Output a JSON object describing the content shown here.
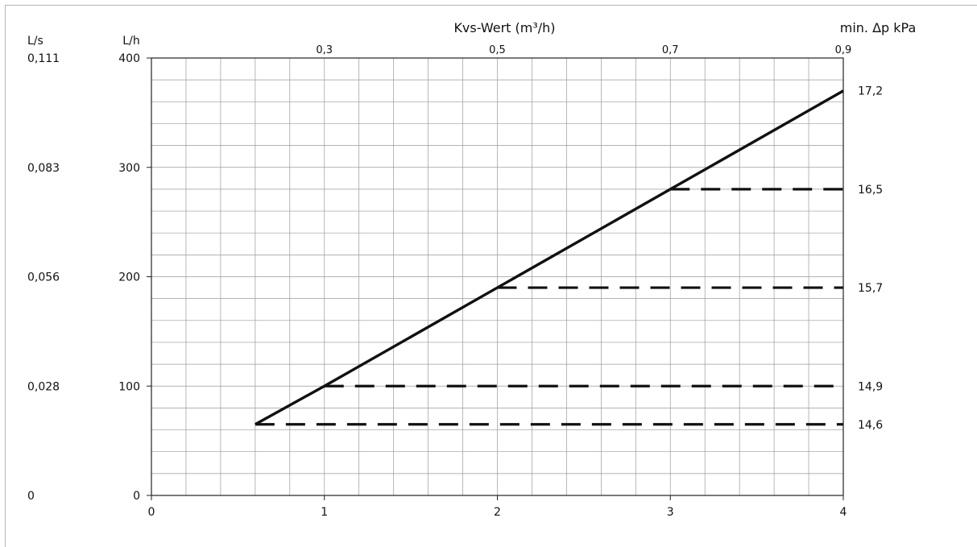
{
  "chart_data": {
    "type": "line",
    "top_axis_label": "Kvs-Wert (m³/h)",
    "top_axis_ticks": [
      "0,3",
      "0,5",
      "0,7",
      "0,9"
    ],
    "top_axis_values": [
      0.3,
      0.5,
      0.7,
      0.9
    ],
    "right_axis_label": "min. Δp kPa",
    "right_axis_ticks": [
      {
        "label": "17,2",
        "y": 370
      },
      {
        "label": "16,5",
        "y": 280
      },
      {
        "label": "15,7",
        "y": 190
      },
      {
        "label": "14,9",
        "y": 100
      },
      {
        "label": "14,6",
        "y": 65
      }
    ],
    "left_axis_1_label": "L/s",
    "left_axis_1_ticks": [
      {
        "label": "0,111",
        "y": 400
      },
      {
        "label": "0,083",
        "y": 300
      },
      {
        "label": "0,056",
        "y": 200
      },
      {
        "label": "0,028",
        "y": 100
      },
      {
        "label": "0",
        "y": 0
      }
    ],
    "left_axis_2_label": "L/h",
    "yticks": [
      0,
      100,
      200,
      300,
      400
    ],
    "ylim": [
      0,
      400
    ],
    "xticks": [
      0,
      1,
      2,
      3,
      4
    ],
    "xlim": [
      0,
      4
    ],
    "grid": true,
    "series": [
      {
        "style": "solid",
        "x": [
          0.6,
          1,
          2,
          3,
          4
        ],
        "y": [
          65,
          100,
          190,
          280,
          370
        ]
      }
    ],
    "dashed_lines": [
      {
        "x_start": 0.6,
        "x_end": 4,
        "y": 65
      },
      {
        "x_start": 1,
        "x_end": 4,
        "y": 100
      },
      {
        "x_start": 2,
        "x_end": 4,
        "y": 190
      },
      {
        "x_start": 3,
        "x_end": 4,
        "y": 280
      }
    ]
  }
}
